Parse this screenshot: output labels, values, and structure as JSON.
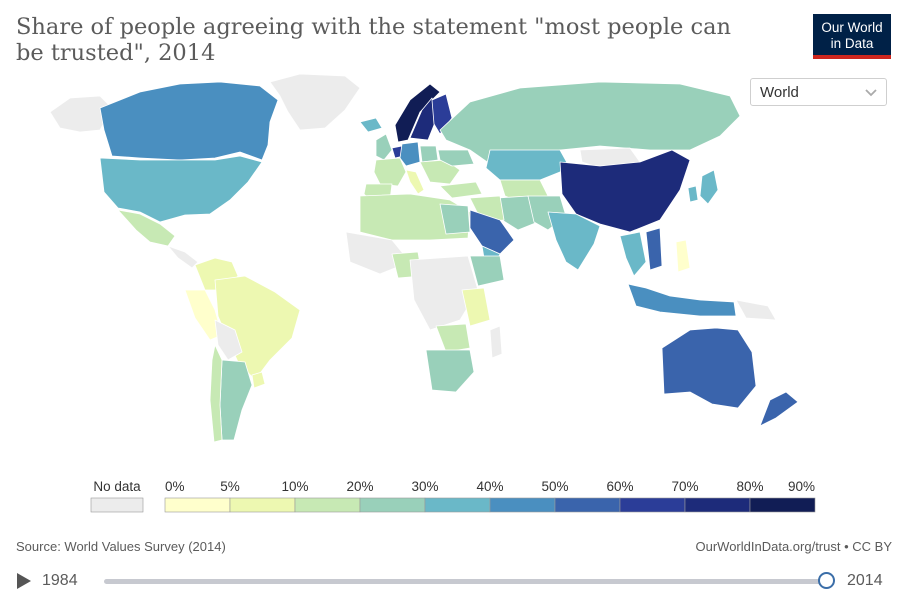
{
  "title": "Share of people agreeing with the statement \"most people can be trusted\", 2014",
  "logo": {
    "line1": "Our World",
    "line2": "in Data"
  },
  "region_select": {
    "value": "World",
    "icon": "chevron-down-icon"
  },
  "legend": {
    "no_data_label": "No data",
    "no_data_color": "#ececec",
    "ticks": [
      "0%",
      "5%",
      "10%",
      "20%",
      "30%",
      "40%",
      "50%",
      "60%",
      "70%",
      "80%",
      "90%"
    ],
    "colors": [
      "#ffffcc",
      "#edf8b1",
      "#c7e9b4",
      "#99d0ba",
      "#6ab8c8",
      "#4a8fc0",
      "#3a64ac",
      "#2b3d98",
      "#1d2b7a",
      "#111d55"
    ]
  },
  "source": "Source: World Values Survey (2014)",
  "credit": "OurWorldInData.org/trust • CC BY",
  "timeline": {
    "start_year": "1984",
    "end_year": "2014",
    "position": 1.0,
    "play_icon": "play-icon"
  }
}
